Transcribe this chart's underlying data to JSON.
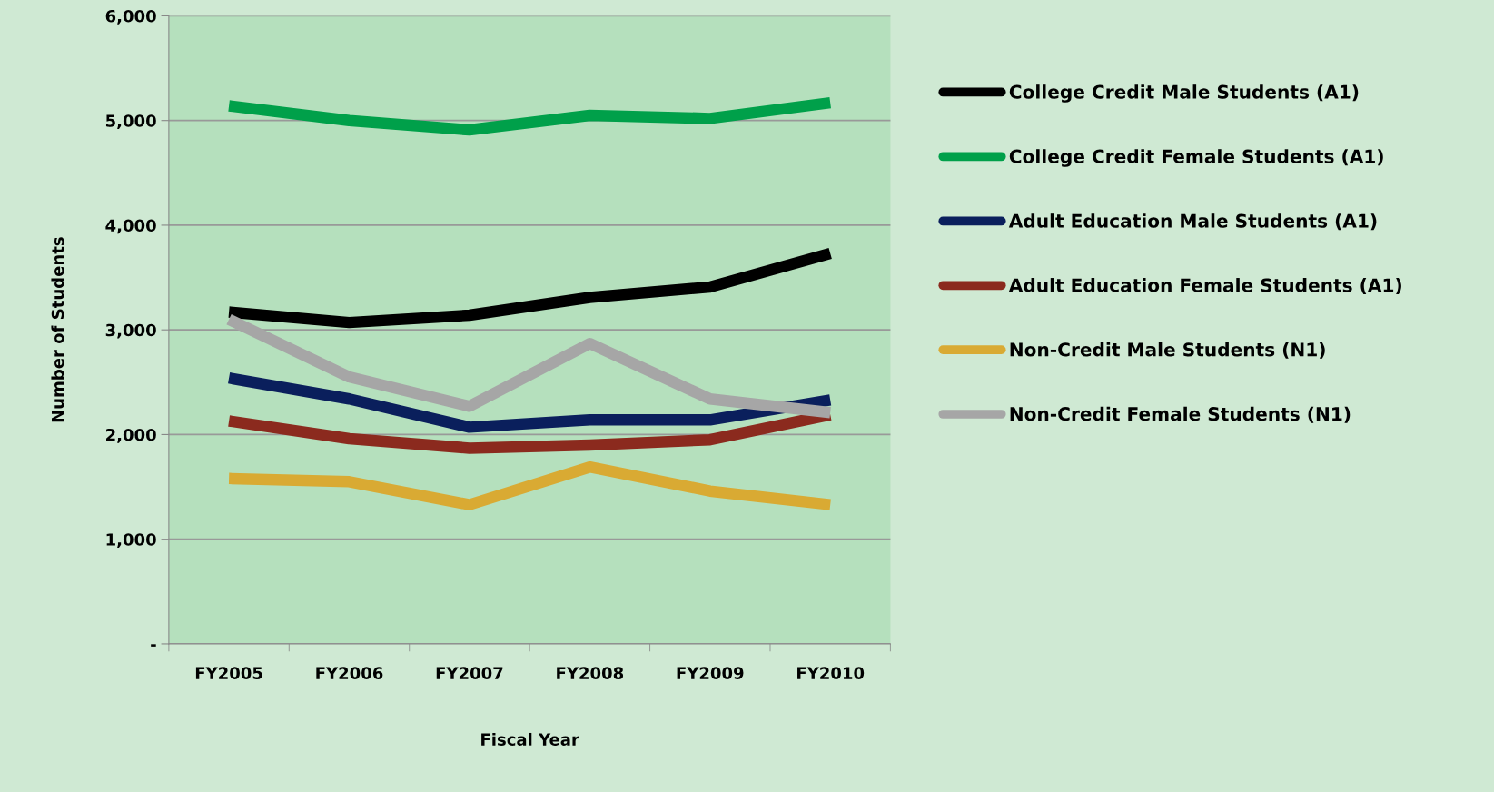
{
  "chart_data": {
    "type": "line",
    "xlabel": "Fiscal Year",
    "ylabel": "Number of Students",
    "categories": [
      "FY2005",
      "FY2006",
      "FY2007",
      "FY2008",
      "FY2009",
      "FY2010"
    ],
    "series": [
      {
        "name": "College Credit Male Students (A1)",
        "color": "#000000",
        "values": [
          3170,
          3070,
          3140,
          3310,
          3410,
          3730
        ]
      },
      {
        "name": "College Credit Female Students (A1)",
        "color": "#00a04a",
        "values": [
          5140,
          5000,
          4910,
          5050,
          5020,
          5170
        ]
      },
      {
        "name": "Adult Education Male Students (A1)",
        "color": "#0a1f5c",
        "values": [
          2540,
          2340,
          2070,
          2140,
          2140,
          2330
        ]
      },
      {
        "name": "Adult Education Female Students (A1)",
        "color": "#8b2a1e",
        "values": [
          2130,
          1960,
          1870,
          1900,
          1950,
          2190
        ]
      },
      {
        "name": "Non-Credit Male Students (N1)",
        "color": "#d9aa33",
        "values": [
          1580,
          1550,
          1330,
          1690,
          1460,
          1330
        ]
      },
      {
        "name": "Non-Credit Female Students (N1)",
        "color": "#a6a6a6",
        "values": [
          3100,
          2550,
          2270,
          2870,
          2340,
          2210
        ]
      }
    ],
    "ylim": [
      0,
      6000
    ],
    "yticks": [
      {
        "value": 0,
        "label": "-"
      },
      {
        "value": 1000,
        "label": "1,000"
      },
      {
        "value": 2000,
        "label": "2,000"
      },
      {
        "value": 3000,
        "label": "3,000"
      },
      {
        "value": 4000,
        "label": "4,000"
      },
      {
        "value": 5000,
        "label": "5,000"
      },
      {
        "value": 6000,
        "label": "6,000"
      }
    ],
    "grid": "y",
    "legend": "right",
    "marker": "none",
    "line_style": "solid"
  }
}
